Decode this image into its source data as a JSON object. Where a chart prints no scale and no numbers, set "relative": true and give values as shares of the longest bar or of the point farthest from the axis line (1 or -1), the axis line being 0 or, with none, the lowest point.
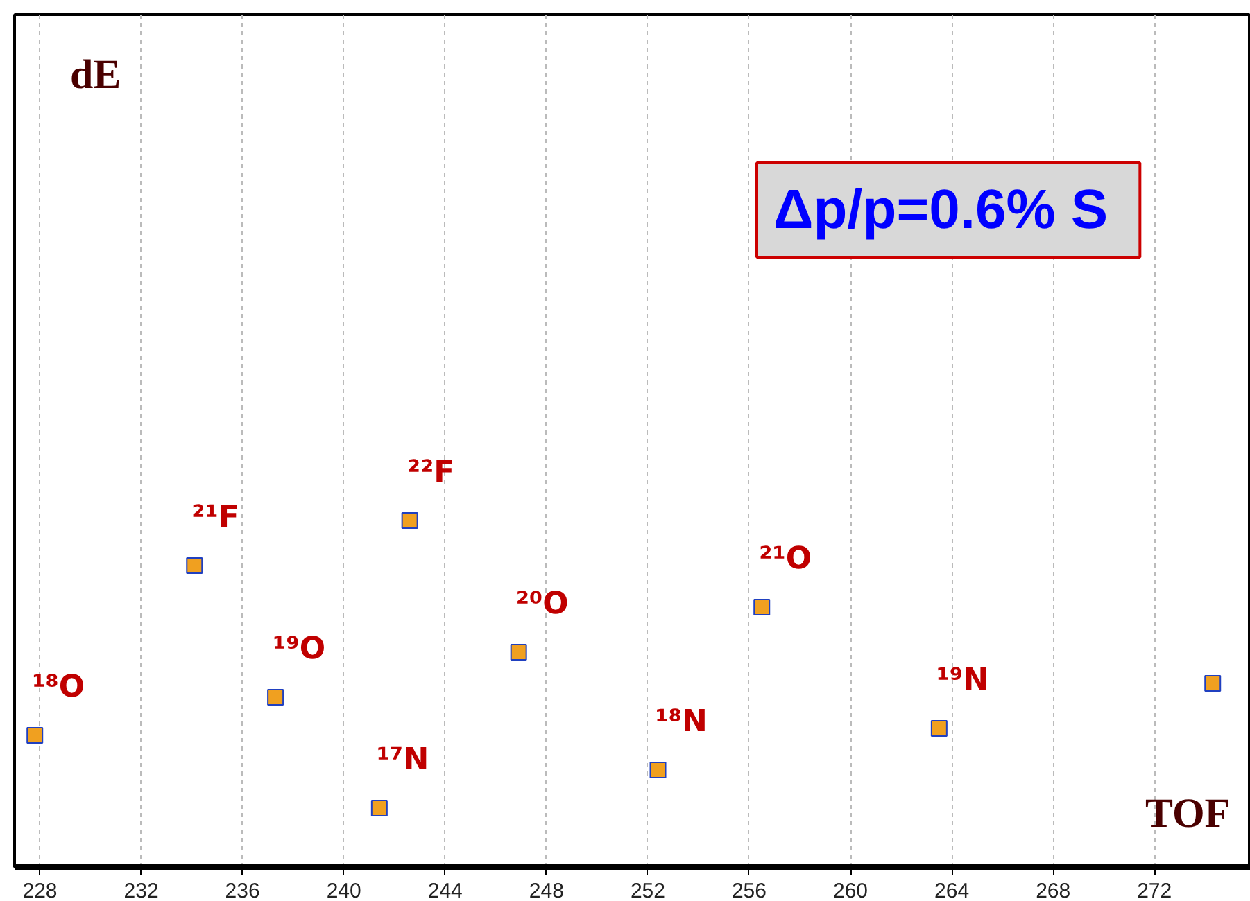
{
  "chart_data": {
    "type": "scatter",
    "relative": true,
    "grid": "x",
    "marker": "square",
    "x": [
      227.8,
      234.1,
      242.6,
      237.3,
      246.9,
      241.4,
      252.4,
      256.5,
      263.5,
      274.3
    ],
    "series": [
      {
        "color": "#f0a020",
        "values": [
          0.38,
          0.87,
          1,
          0.49,
          0.62,
          0.17,
          0.28,
          0.75,
          0.4,
          0.53
        ]
      }
    ],
    "xlim": [
      227,
      275.8
    ],
    "xticks": [
      228,
      232,
      236,
      240,
      244,
      248,
      252,
      256,
      260,
      264,
      268,
      272
    ],
    "annotations": [
      {
        "text": "¹⁸O",
        "x": 227.8,
        "y": 0.38
      },
      {
        "text": "²¹F",
        "x": 234.1,
        "y": 0.87
      },
      {
        "text": "²²F",
        "x": 242.6,
        "y": 1
      },
      {
        "text": "¹⁹O",
        "x": 237.3,
        "y": 0.49
      },
      {
        "text": "²⁰O",
        "x": 246.9,
        "y": 0.62
      },
      {
        "text": "¹⁷N",
        "x": 241.4,
        "y": 0.17
      },
      {
        "text": "¹⁸N",
        "x": 252.4,
        "y": 0.28
      },
      {
        "text": "²¹O",
        "x": 256.5,
        "y": 0.75
      },
      {
        "text": "¹⁹N",
        "x": 263.5,
        "y": 0.4
      },
      "dE",
      "TOF",
      "Δp/p=0.6%  S"
    ]
  }
}
